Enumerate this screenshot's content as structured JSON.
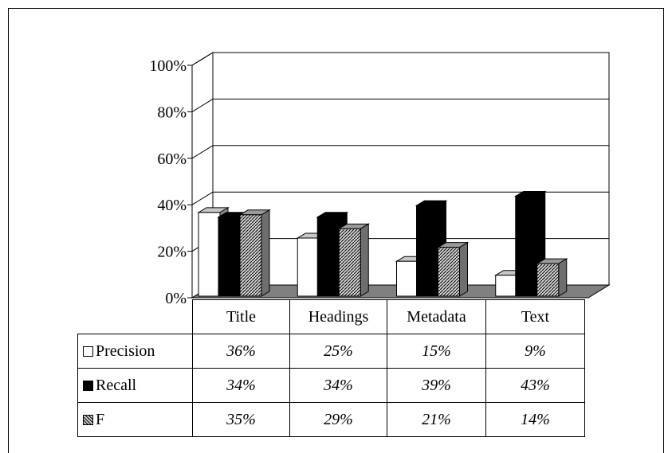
{
  "chart_data": {
    "type": "bar",
    "categories": [
      "Title",
      "Headings",
      "Metadata",
      "Text"
    ],
    "series": [
      {
        "name": "Precision",
        "values": [
          36,
          25,
          15,
          9
        ],
        "labels": [
          "36%",
          "25%",
          "15%",
          "9%"
        ],
        "fill": "#ffffff"
      },
      {
        "name": "Recall",
        "values": [
          34,
          34,
          39,
          43
        ],
        "labels": [
          "34%",
          "34%",
          "39%",
          "43%"
        ],
        "fill": "#000000"
      },
      {
        "name": "F",
        "values": [
          35,
          29,
          21,
          14
        ],
        "labels": [
          "35%",
          "29%",
          "21%",
          "14%"
        ],
        "fill": "hatched"
      }
    ],
    "ylim": [
      0,
      100
    ],
    "yticks": [
      "0%",
      "20%",
      "40%",
      "60%",
      "80%",
      "100%"
    ],
    "grid": true,
    "legend": "data-table",
    "colors": {
      "grid": "#000000",
      "floor": "#808080",
      "background": "#ffffff"
    }
  }
}
